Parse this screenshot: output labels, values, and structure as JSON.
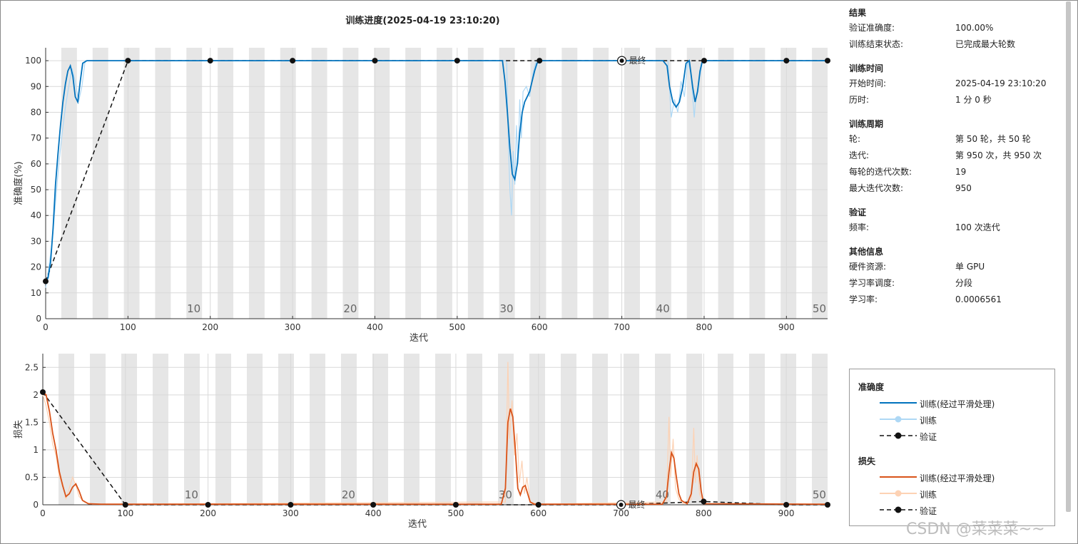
{
  "window": {
    "title": "训练进度(2025-04-19 23:10:20)"
  },
  "chart_data": [
    {
      "type": "line",
      "ylabel": "准确度(%)",
      "xlabel": "迭代",
      "xlim": [
        0,
        950
      ],
      "ylim": [
        0,
        105
      ],
      "xticks": [
        0,
        100,
        200,
        300,
        400,
        500,
        600,
        700,
        800,
        900
      ],
      "yticks": [
        0,
        10,
        20,
        30,
        40,
        50,
        60,
        70,
        80,
        90,
        100
      ],
      "epoch_labels": [
        {
          "x": 180,
          "label": "10"
        },
        {
          "x": 370,
          "label": "20"
        },
        {
          "x": 560,
          "label": "30"
        },
        {
          "x": 750,
          "label": "40"
        },
        {
          "x": 940,
          "label": "50"
        }
      ],
      "final_marker": {
        "x": 700,
        "y": 100,
        "label": "最终"
      },
      "series": [
        {
          "name": "训练(经过平滑处理)",
          "x": [
            0,
            3,
            6,
            9,
            12,
            15,
            18,
            21,
            24,
            27,
            30,
            33,
            36,
            39,
            42,
            45,
            50,
            60,
            80,
            100,
            200,
            300,
            400,
            500,
            555,
            558,
            561,
            564,
            567,
            570,
            573,
            576,
            579,
            582,
            585,
            588,
            591,
            594,
            597,
            600,
            700,
            750,
            755,
            758,
            762,
            766,
            770,
            774,
            778,
            782,
            786,
            789,
            792,
            795,
            798,
            800,
            850,
            900,
            950
          ],
          "values": [
            14,
            16,
            22,
            35,
            52,
            64,
            75,
            84,
            91,
            96,
            98,
            94,
            86,
            84,
            92,
            99,
            100,
            100,
            100,
            100,
            100,
            100,
            100,
            100,
            100,
            92,
            80,
            66,
            56,
            54,
            60,
            72,
            80,
            84,
            86,
            88,
            92,
            96,
            99,
            100,
            100,
            100,
            98,
            90,
            84,
            82,
            84,
            90,
            99,
            100,
            90,
            84,
            88,
            96,
            100,
            100,
            100,
            100,
            100
          ]
        },
        {
          "name": "训练",
          "x": [
            0,
            4,
            8,
            12,
            16,
            20,
            24,
            28,
            32,
            36,
            40,
            44,
            48,
            60,
            100,
            560,
            562,
            564,
            566,
            568,
            570,
            572,
            574,
            576,
            578,
            580,
            584,
            588,
            592,
            596,
            600,
            756,
            760,
            764,
            768,
            772,
            776,
            780,
            784,
            788,
            790,
            794,
            798,
            800,
            950
          ],
          "values": [
            12,
            20,
            30,
            45,
            60,
            72,
            82,
            90,
            97,
            92,
            84,
            90,
            100,
            100,
            100,
            100,
            70,
            50,
            40,
            65,
            52,
            75,
            60,
            85,
            70,
            88,
            90,
            86,
            95,
            100,
            100,
            100,
            78,
            85,
            80,
            92,
            86,
            100,
            95,
            78,
            86,
            92,
            100,
            100,
            100
          ]
        },
        {
          "name": "验证",
          "x": [
            0,
            100,
            200,
            300,
            400,
            500,
            600,
            700,
            800,
            900,
            950
          ],
          "values": [
            14.5,
            100,
            100,
            100,
            100,
            100,
            100,
            100,
            100,
            100,
            100
          ]
        }
      ]
    },
    {
      "type": "line",
      "ylabel": "损失",
      "xlabel": "迭代",
      "xlim": [
        0,
        950
      ],
      "ylim": [
        0,
        2.75
      ],
      "xticks": [
        0,
        100,
        200,
        300,
        400,
        500,
        600,
        700,
        800,
        900
      ],
      "yticks": [
        0,
        0.5,
        1,
        1.5,
        2,
        2.5
      ],
      "epoch_labels": [
        {
          "x": 180,
          "label": "10"
        },
        {
          "x": 370,
          "label": "20"
        },
        {
          "x": 560,
          "label": "30"
        },
        {
          "x": 750,
          "label": "40"
        },
        {
          "x": 940,
          "label": "50"
        }
      ],
      "final_marker": {
        "x": 700,
        "y": 0,
        "label": "最终"
      },
      "series": [
        {
          "name": "训练(经过平滑处理)",
          "x": [
            0,
            4,
            8,
            12,
            16,
            20,
            24,
            28,
            32,
            36,
            40,
            44,
            48,
            55,
            70,
            100,
            555,
            560,
            563,
            566,
            569,
            572,
            575,
            578,
            581,
            584,
            587,
            590,
            595,
            600,
            750,
            755,
            758,
            761,
            764,
            767,
            770,
            773,
            776,
            780,
            785,
            788,
            791,
            794,
            797,
            800,
            950
          ],
          "values": [
            2.05,
            2.0,
            1.7,
            1.3,
            1.0,
            0.6,
            0.35,
            0.15,
            0.2,
            0.32,
            0.38,
            0.25,
            0.08,
            0.02,
            0.01,
            0.01,
            0.01,
            0.3,
            1.5,
            1.75,
            1.6,
            1.0,
            0.3,
            0.18,
            0.32,
            0.35,
            0.2,
            0.05,
            0.01,
            0.01,
            0.01,
            0.15,
            0.6,
            0.95,
            0.85,
            0.5,
            0.2,
            0.08,
            0.05,
            0.02,
            0.2,
            0.6,
            0.75,
            0.65,
            0.25,
            0.02,
            0.01
          ]
        },
        {
          "name": "训练",
          "x": [
            0,
            4,
            8,
            12,
            16,
            20,
            24,
            28,
            32,
            36,
            40,
            44,
            50,
            60,
            100,
            560,
            563,
            565,
            568,
            571,
            574,
            577,
            580,
            583,
            586,
            590,
            600,
            755,
            758,
            760,
            763,
            766,
            770,
            775,
            785,
            788,
            790,
            792,
            795,
            800,
            950
          ],
          "values": [
            2.0,
            1.8,
            1.5,
            1.1,
            0.9,
            0.5,
            0.4,
            0.1,
            0.3,
            0.5,
            0.35,
            0.15,
            0.05,
            0.01,
            0.01,
            0.05,
            2.6,
            1.2,
            1.9,
            0.9,
            1.3,
            0.4,
            0.8,
            0.2,
            0.5,
            0.05,
            0.01,
            0.05,
            1.6,
            0.5,
            1.2,
            0.3,
            0.1,
            0.02,
            0.1,
            1.4,
            0.4,
            0.9,
            0.2,
            0.02,
            0.01
          ]
        },
        {
          "name": "验证",
          "x": [
            0,
            100,
            200,
            300,
            400,
            500,
            600,
            700,
            800,
            900,
            950
          ],
          "values": [
            2.05,
            0.0,
            0.0,
            0.0,
            0.0,
            0.0,
            0.0,
            0.0,
            0.06,
            0.0,
            0.0
          ]
        }
      ]
    }
  ],
  "colors": {
    "smoothed_acc": "#0072bd",
    "raw_acc": "#aed8f5",
    "smoothed_loss": "#d95319",
    "raw_loss": "#fdd2b4",
    "validation": "#111111",
    "epoch_band": "#e6e6e6",
    "grid": "#d9d9d9"
  },
  "info": {
    "sections": [
      {
        "title": "结果",
        "rows": [
          {
            "key": "验证准确度:",
            "value": "100.00%"
          },
          {
            "key": "训练结束状态:",
            "value": "已完成最大轮数"
          }
        ]
      },
      {
        "title": "训练时间",
        "rows": [
          {
            "key": "开始时间:",
            "value": "2025-04-19 23:10:20"
          },
          {
            "key": "历时:",
            "value": "1 分 0 秒"
          }
        ]
      },
      {
        "title": "训练周期",
        "rows": [
          {
            "key": "轮:",
            "value": "第 50 轮，共 50 轮"
          },
          {
            "key": "迭代:",
            "value": "第 950 次，共 950 次"
          },
          {
            "key": "每轮的迭代次数:",
            "value": "19"
          },
          {
            "key": "最大迭代次数:",
            "value": "950"
          }
        ]
      },
      {
        "title": "验证",
        "rows": [
          {
            "key": "频率:",
            "value": "100 次迭代"
          }
        ]
      },
      {
        "title": "其他信息",
        "rows": [
          {
            "key": "硬件资源:",
            "value": "单 GPU"
          },
          {
            "key": "学习率调度:",
            "value": "分段"
          },
          {
            "key": "学习率:",
            "value": "0.0006561"
          }
        ]
      }
    ]
  },
  "legend": {
    "accuracy_title": "准确度",
    "loss_title": "损失",
    "smoothed": "训练(经过平滑处理)",
    "raw": "训练",
    "validation": "验证"
  },
  "watermark": "CSDN @菜菜菜~~"
}
